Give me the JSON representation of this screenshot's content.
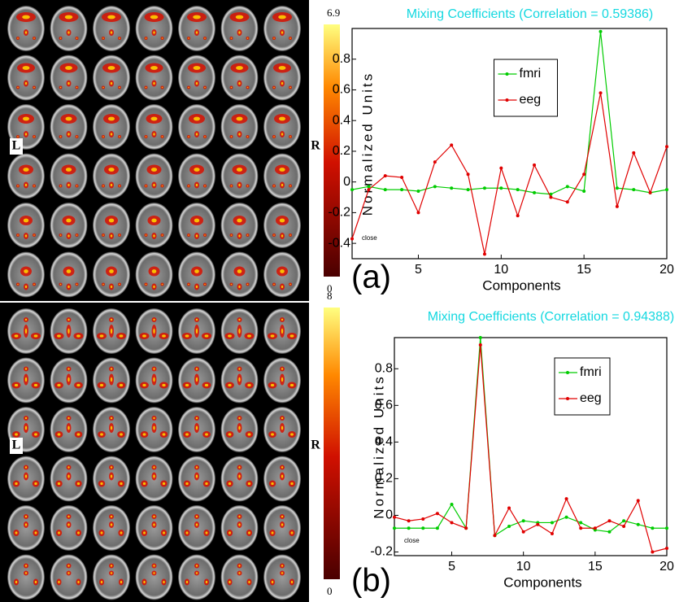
{
  "brain_panels": [
    {
      "left_label": "L",
      "right_label": "R",
      "colorbar_ticks": [
        0,
        6.9
      ]
    },
    {
      "left_label": "L",
      "right_label": "R",
      "colorbar_ticks": [
        0,
        8
      ]
    }
  ],
  "chart_data": [
    {
      "type": "line",
      "title": "Mixing Coefficients (Correlation = 0.59386)",
      "x_label": "Components",
      "y_label": "Normalized Units",
      "panel_label": "(a)",
      "annotation": "close",
      "x": [
        1,
        2,
        3,
        4,
        5,
        6,
        7,
        8,
        9,
        10,
        11,
        12,
        13,
        14,
        15,
        16,
        17,
        18,
        19,
        20
      ],
      "series": [
        {
          "name": "fmri",
          "color": "#00cc00",
          "values": [
            -0.05,
            -0.03,
            -0.05,
            -0.05,
            -0.06,
            -0.03,
            -0.04,
            -0.05,
            -0.04,
            -0.04,
            -0.05,
            -0.07,
            -0.08,
            -0.03,
            -0.06,
            0.98,
            -0.04,
            -0.05,
            -0.07,
            -0.05
          ]
        },
        {
          "name": "eeg",
          "color": "#e00000",
          "values": [
            -0.37,
            -0.05,
            0.04,
            0.03,
            -0.2,
            0.13,
            0.24,
            0.05,
            -0.47,
            0.09,
            -0.22,
            0.11,
            -0.1,
            -0.13,
            0.05,
            0.58,
            -0.16,
            0.19,
            -0.07,
            0.23
          ]
        }
      ],
      "xlim": [
        1,
        20
      ],
      "xticks": [
        5,
        10,
        15,
        20
      ],
      "ylim": [
        -0.5,
        1
      ],
      "yticks": [
        -0.4,
        -0.2,
        0,
        0.2,
        0.4,
        0.6,
        0.8
      ],
      "legend": "upper center"
    },
    {
      "type": "line",
      "title": "Mixing Coefficients (Correlation = 0.94388)",
      "x_label": "Components",
      "y_label": "Normalized Units",
      "panel_label": "(b)",
      "annotation": "close",
      "x": [
        1,
        2,
        3,
        4,
        5,
        6,
        7,
        8,
        9,
        10,
        11,
        12,
        13,
        14,
        15,
        16,
        17,
        18,
        19,
        20
      ],
      "series": [
        {
          "name": "fmri",
          "color": "#00cc00",
          "values": [
            -0.07,
            -0.07,
            -0.07,
            -0.07,
            0.06,
            -0.07,
            0.97,
            -0.11,
            -0.06,
            -0.03,
            -0.04,
            -0.04,
            -0.01,
            -0.04,
            -0.08,
            -0.09,
            -0.03,
            -0.05,
            -0.07,
            -0.07
          ]
        },
        {
          "name": "eeg",
          "color": "#e00000",
          "values": [
            -0.01,
            -0.03,
            -0.02,
            0.01,
            -0.04,
            -0.07,
            0.93,
            -0.11,
            0.04,
            -0.09,
            -0.05,
            -0.1,
            0.09,
            -0.07,
            -0.07,
            -0.03,
            -0.06,
            0.08,
            -0.2,
            -0.18
          ]
        }
      ],
      "xlim": [
        1,
        20
      ],
      "xticks": [
        5,
        10,
        15,
        20
      ],
      "ylim": [
        -0.22,
        0.97
      ],
      "yticks": [
        -0.2,
        0,
        0.2,
        0.4,
        0.6,
        0.8
      ],
      "legend": "upper right"
    }
  ]
}
